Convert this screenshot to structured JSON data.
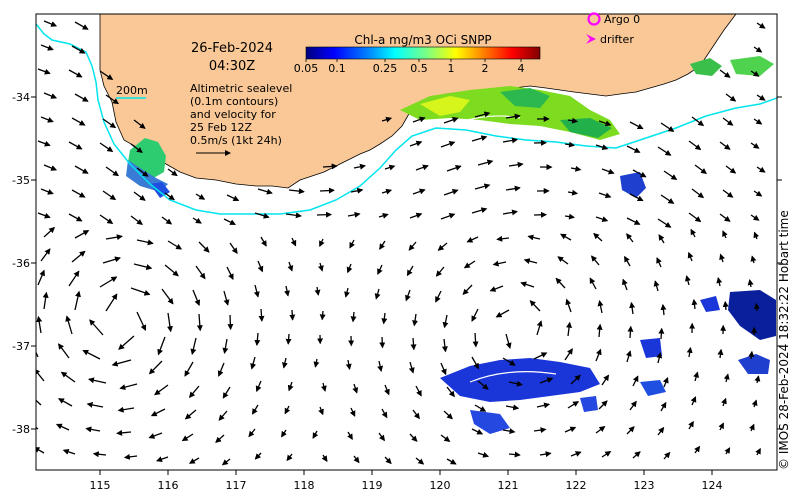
{
  "date": "26-Feb-2024",
  "time": "04:30Z",
  "legend": {
    "isobath_label": "200m",
    "argo_label": "Argo 0",
    "drifter_label": "drifter",
    "argo_color": "#ff00ff",
    "drifter_color": "#ff00ff",
    "isobath_color": "#00e5ee"
  },
  "description_lines": [
    "Altimetric sealevel",
    "(0.1m contours)",
    "and velocity for",
    "25 Feb 12Z",
    "0.5m/s (1kt 24h)"
  ],
  "colorbar": {
    "title": "Chl-a mg/m3 OCi SNPP",
    "tick_labels": [
      "0.05",
      "0.1",
      "0.25",
      "0.5",
      "1",
      "2",
      "4"
    ],
    "colors": [
      "#00007f",
      "#0000ff",
      "#007fff",
      "#00ffff",
      "#7fff7f",
      "#ffff00",
      "#ff7f00",
      "#ff0000",
      "#7f0000"
    ]
  },
  "axes": {
    "x_ticks": [
      "115",
      "116",
      "117",
      "118",
      "119",
      "120",
      "121",
      "122",
      "123",
      "124"
    ],
    "y_ticks": [
      "34",
      "35",
      "36",
      "37",
      "38"
    ],
    "y_prefix": "-"
  },
  "credit": "© IMOS 28-Feb-2024 18:32:22 Hobart time",
  "colors": {
    "land": "#f9c896",
    "sea": "#ffffff",
    "arrow": "#000000"
  }
}
